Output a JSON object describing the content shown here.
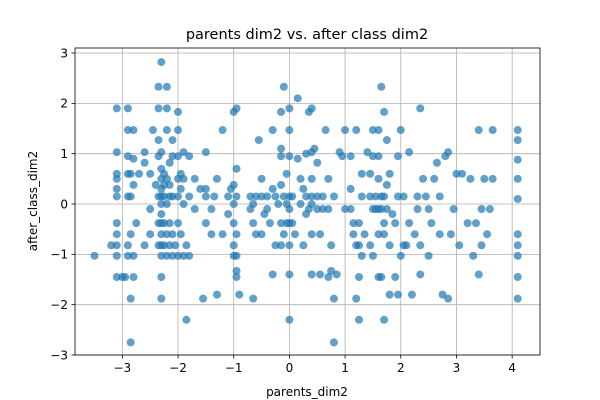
{
  "chart_data": {
    "type": "scatter",
    "title": "parents dim2 vs. after class dim2",
    "xlabel": "parents_dim2",
    "ylabel": "after_class_dim2",
    "xlim": [
      -3.85,
      4.5
    ],
    "ylim": [
      -3.0,
      3.1
    ],
    "xticks": [
      -3,
      -2,
      -1,
      0,
      1,
      2,
      3,
      4
    ],
    "yticks": [
      -3,
      -2,
      -1,
      0,
      1,
      2,
      3
    ],
    "xtick_labels": [
      "−3",
      "−2",
      "−1",
      "0",
      "1",
      "2",
      "3",
      "4"
    ],
    "ytick_labels": [
      "−3",
      "−2",
      "−1",
      "0",
      "1",
      "2",
      "3"
    ],
    "grid": true,
    "marker_color": "#1f77b4",
    "marker_alpha": 0.7,
    "points": [
      [
        -3.5,
        -1.03
      ],
      [
        -3.2,
        -0.82
      ],
      [
        -3.1,
        -0.82
      ],
      [
        -3.1,
        -1.45
      ],
      [
        -3.1,
        -1.03
      ],
      [
        -3.1,
        -0.6
      ],
      [
        -3.1,
        -0.38
      ],
      [
        -3.1,
        0.15
      ],
      [
        -3.1,
        0.3
      ],
      [
        -3.1,
        0.5
      ],
      [
        -3.1,
        0.6
      ],
      [
        -3.1,
        1.03
      ],
      [
        -3.1,
        1.9
      ],
      [
        -3.0,
        -1.45
      ],
      [
        -2.95,
        -1.45
      ],
      [
        -2.9,
        -1.03
      ],
      [
        -2.9,
        -0.82
      ],
      [
        -2.9,
        0.15
      ],
      [
        -2.9,
        0.6
      ],
      [
        -2.9,
        0.95
      ],
      [
        -2.9,
        1.47
      ],
      [
        -2.9,
        1.9
      ],
      [
        -2.85,
        -2.75
      ],
      [
        -2.85,
        -1.88
      ],
      [
        -2.85,
        -0.6
      ],
      [
        -2.85,
        0.15
      ],
      [
        -2.85,
        0.6
      ],
      [
        -2.8,
        -1.45
      ],
      [
        -2.8,
        -1.03
      ],
      [
        -2.8,
        0.38
      ],
      [
        -2.8,
        0.9
      ],
      [
        -2.8,
        1.47
      ],
      [
        -2.75,
        -0.38
      ],
      [
        -2.7,
        0.6
      ],
      [
        -2.6,
        -0.82
      ],
      [
        -2.6,
        0.82
      ],
      [
        -2.6,
        1.03
      ],
      [
        -2.5,
        -0.6
      ],
      [
        -2.5,
        -0.1
      ],
      [
        -2.5,
        0.6
      ],
      [
        -2.45,
        1.47
      ],
      [
        -2.4,
        0.38
      ],
      [
        -2.35,
        -0.82
      ],
      [
        -2.35,
        -0.38
      ],
      [
        -2.35,
        0.15
      ],
      [
        -2.35,
        0.95
      ],
      [
        -2.35,
        1.27
      ],
      [
        -2.35,
        1.9
      ],
      [
        -2.35,
        2.33
      ],
      [
        -2.3,
        -1.88
      ],
      [
        -2.3,
        -1.45
      ],
      [
        -2.3,
        -1.03
      ],
      [
        -2.3,
        -0.82
      ],
      [
        -2.3,
        -0.6
      ],
      [
        -2.3,
        -0.38
      ],
      [
        -2.3,
        -0.2
      ],
      [
        -2.3,
        0.0
      ],
      [
        -2.3,
        0.15
      ],
      [
        -2.3,
        0.3
      ],
      [
        -2.3,
        0.5
      ],
      [
        -2.3,
        0.7
      ],
      [
        -2.3,
        1.03
      ],
      [
        -2.3,
        2.82
      ],
      [
        -2.25,
        -0.82
      ],
      [
        -2.25,
        -0.38
      ],
      [
        -2.25,
        0.15
      ],
      [
        -2.25,
        0.38
      ],
      [
        -2.25,
        0.6
      ],
      [
        -2.2,
        -1.03
      ],
      [
        -2.2,
        -0.6
      ],
      [
        -2.2,
        0.0
      ],
      [
        -2.2,
        0.5
      ],
      [
        -2.2,
        1.47
      ],
      [
        -2.2,
        1.9
      ],
      [
        -2.2,
        2.33
      ],
      [
        -2.15,
        -0.82
      ],
      [
        -2.15,
        -0.38
      ],
      [
        -2.15,
        0.15
      ],
      [
        -2.15,
        0.38
      ],
      [
        -2.15,
        0.82
      ],
      [
        -2.1,
        -1.03
      ],
      [
        -2.1,
        -0.6
      ],
      [
        -2.1,
        0.15
      ],
      [
        -2.1,
        0.95
      ],
      [
        -2.1,
        1.27
      ],
      [
        -2.05,
        -0.82
      ],
      [
        -2.0,
        -1.03
      ],
      [
        -2.0,
        -0.38
      ],
      [
        -2.0,
        0.15
      ],
      [
        -2.0,
        0.5
      ],
      [
        -2.0,
        0.95
      ],
      [
        -2.0,
        1.47
      ],
      [
        -2.0,
        1.83
      ],
      [
        -1.95,
        -0.6
      ],
      [
        -1.95,
        0.3
      ],
      [
        -1.95,
        0.6
      ],
      [
        -1.9,
        -1.03
      ],
      [
        -1.9,
        0.0
      ],
      [
        -1.9,
        0.5
      ],
      [
        -1.9,
        1.03
      ],
      [
        -1.85,
        -2.3
      ],
      [
        -1.85,
        -0.82
      ],
      [
        -1.8,
        -1.03
      ],
      [
        -1.8,
        0.15
      ],
      [
        -1.8,
        0.95
      ],
      [
        -1.7,
        -0.1
      ],
      [
        -1.7,
        0.5
      ],
      [
        -1.6,
        0.3
      ],
      [
        -1.55,
        -1.88
      ],
      [
        -1.5,
        -0.38
      ],
      [
        -1.5,
        0.15
      ],
      [
        -1.5,
        0.3
      ],
      [
        -1.5,
        1.03
      ],
      [
        -1.4,
        -0.6
      ],
      [
        -1.4,
        -0.1
      ],
      [
        -1.35,
        0.15
      ],
      [
        -1.3,
        -1.8
      ],
      [
        -1.3,
        0.5
      ],
      [
        -1.2,
        -0.6
      ],
      [
        -1.2,
        1.47
      ],
      [
        -1.1,
        -0.2
      ],
      [
        -1.1,
        0.15
      ],
      [
        -1.05,
        0.3
      ],
      [
        -1.0,
        -1.03
      ],
      [
        -1.0,
        -0.82
      ],
      [
        -1.0,
        -0.38
      ],
      [
        -1.0,
        0.0
      ],
      [
        -1.0,
        0.38
      ],
      [
        -1.0,
        1.83
      ],
      [
        -0.95,
        -1.45
      ],
      [
        -0.95,
        -1.33
      ],
      [
        -0.95,
        -1.03
      ],
      [
        -0.95,
        -0.6
      ],
      [
        -0.95,
        0.15
      ],
      [
        -0.95,
        0.7
      ],
      [
        -0.95,
        1.9
      ],
      [
        -0.9,
        -1.8
      ],
      [
        -0.7,
        -0.1
      ],
      [
        -0.7,
        0.15
      ],
      [
        -0.65,
        -1.88
      ],
      [
        -0.65,
        -0.38
      ],
      [
        -0.65,
        0.0
      ],
      [
        -0.6,
        -0.6
      ],
      [
        -0.6,
        0.15
      ],
      [
        -0.55,
        1.27
      ],
      [
        -0.5,
        -0.6
      ],
      [
        -0.5,
        0.15
      ],
      [
        -0.5,
        0.5
      ],
      [
        -0.45,
        -0.2
      ],
      [
        -0.4,
        -0.1
      ],
      [
        -0.4,
        0.15
      ],
      [
        -0.35,
        -0.38
      ],
      [
        -0.3,
        -1.4
      ],
      [
        -0.3,
        0.3
      ],
      [
        -0.3,
        1.47
      ],
      [
        -0.25,
        -0.82
      ],
      [
        -0.25,
        0.15
      ],
      [
        -0.2,
        0.0
      ],
      [
        -0.15,
        -0.82
      ],
      [
        -0.15,
        -0.38
      ],
      [
        -0.15,
        0.38
      ],
      [
        -0.15,
        0.95
      ],
      [
        -0.15,
        1.1
      ],
      [
        -0.15,
        1.83
      ],
      [
        -0.1,
        -0.6
      ],
      [
        -0.1,
        0.15
      ],
      [
        -0.1,
        2.33
      ],
      [
        -0.05,
        -0.38
      ],
      [
        -0.05,
        0.0
      ],
      [
        -0.05,
        0.6
      ],
      [
        0.0,
        -2.3
      ],
      [
        0.0,
        -1.4
      ],
      [
        0.0,
        -0.82
      ],
      [
        0.0,
        -0.38
      ],
      [
        0.0,
        -0.1
      ],
      [
        0.0,
        0.15
      ],
      [
        0.0,
        0.95
      ],
      [
        0.0,
        1.47
      ],
      [
        0.0,
        1.9
      ],
      [
        0.05,
        -0.38
      ],
      [
        0.05,
        0.15
      ],
      [
        0.1,
        -0.6
      ],
      [
        0.15,
        0.9
      ],
      [
        0.15,
        2.1
      ],
      [
        0.2,
        0.5
      ],
      [
        0.2,
        0.0
      ],
      [
        0.25,
        -0.82
      ],
      [
        0.25,
        0.3
      ],
      [
        0.3,
        -0.2
      ],
      [
        0.3,
        0.15
      ],
      [
        0.3,
        1.0
      ],
      [
        0.35,
        -0.1
      ],
      [
        0.35,
        1.83
      ],
      [
        0.4,
        -1.4
      ],
      [
        0.4,
        -0.6
      ],
      [
        0.4,
        0.0
      ],
      [
        0.4,
        0.15
      ],
      [
        0.4,
        0.5
      ],
      [
        0.4,
        1.03
      ],
      [
        0.4,
        1.9
      ],
      [
        0.45,
        1.1
      ],
      [
        0.5,
        -0.1
      ],
      [
        0.5,
        0.15
      ],
      [
        0.5,
        0.82
      ],
      [
        0.55,
        -1.4
      ],
      [
        0.55,
        -0.6
      ],
      [
        0.6,
        -0.1
      ],
      [
        0.6,
        0.15
      ],
      [
        0.65,
        1.47
      ],
      [
        0.7,
        -1.45
      ],
      [
        0.7,
        -0.1
      ],
      [
        0.7,
        0.5
      ],
      [
        0.75,
        -1.33
      ],
      [
        0.75,
        -0.82
      ],
      [
        0.8,
        -2.75
      ],
      [
        0.8,
        -1.88
      ],
      [
        0.8,
        0.15
      ],
      [
        0.85,
        -1.4
      ],
      [
        0.9,
        1.03
      ],
      [
        0.95,
        0.95
      ],
      [
        1.0,
        -0.1
      ],
      [
        1.0,
        1.47
      ],
      [
        1.1,
        -0.1
      ],
      [
        1.1,
        0.3
      ],
      [
        1.1,
        0.95
      ],
      [
        1.15,
        -0.6
      ],
      [
        1.15,
        -0.38
      ],
      [
        1.2,
        -1.88
      ],
      [
        1.2,
        -0.82
      ],
      [
        1.2,
        1.47
      ],
      [
        1.25,
        -2.3
      ],
      [
        1.25,
        -1.45
      ],
      [
        1.25,
        -0.82
      ],
      [
        1.25,
        -0.38
      ],
      [
        1.3,
        -1.03
      ],
      [
        1.3,
        0.15
      ],
      [
        1.3,
        0.6
      ],
      [
        1.35,
        -0.6
      ],
      [
        1.4,
        1.03
      ],
      [
        1.45,
        -0.82
      ],
      [
        1.45,
        0.15
      ],
      [
        1.45,
        0.6
      ],
      [
        1.5,
        -1.03
      ],
      [
        1.5,
        -0.1
      ],
      [
        1.5,
        0.95
      ],
      [
        1.5,
        1.47
      ],
      [
        1.55,
        -0.1
      ],
      [
        1.55,
        0.15
      ],
      [
        1.6,
        -1.45
      ],
      [
        1.6,
        -0.6
      ],
      [
        1.6,
        -0.1
      ],
      [
        1.6,
        0.5
      ],
      [
        1.6,
        0.95
      ],
      [
        1.6,
        1.47
      ],
      [
        1.65,
        -1.45
      ],
      [
        1.65,
        -0.1
      ],
      [
        1.65,
        0.15
      ],
      [
        1.65,
        2.33
      ],
      [
        1.7,
        -2.3
      ],
      [
        1.7,
        -0.6
      ],
      [
        1.7,
        -0.38
      ],
      [
        1.7,
        0.15
      ],
      [
        1.7,
        1.83
      ],
      [
        1.75,
        -0.1
      ],
      [
        1.75,
        0.38
      ],
      [
        1.75,
        1.27
      ],
      [
        1.8,
        -1.8
      ],
      [
        1.8,
        -0.82
      ],
      [
        1.8,
        0.6
      ],
      [
        1.85,
        -0.2
      ],
      [
        1.9,
        -1.45
      ],
      [
        1.9,
        -0.38
      ],
      [
        1.95,
        -1.8
      ],
      [
        1.95,
        0.15
      ],
      [
        1.95,
        0.95
      ],
      [
        2.0,
        -1.03
      ],
      [
        2.0,
        1.47
      ],
      [
        2.05,
        -0.82
      ],
      [
        2.05,
        0.15
      ],
      [
        2.1,
        -0.82
      ],
      [
        2.15,
        -0.38
      ],
      [
        2.15,
        1.03
      ],
      [
        2.2,
        -1.8
      ],
      [
        2.25,
        -0.6
      ],
      [
        2.3,
        -0.1
      ],
      [
        2.3,
        0.15
      ],
      [
        2.35,
        -1.4
      ],
      [
        2.35,
        -0.82
      ],
      [
        2.35,
        1.9
      ],
      [
        2.4,
        0.5
      ],
      [
        2.45,
        0.15
      ],
      [
        2.5,
        -1.03
      ],
      [
        2.5,
        -0.1
      ],
      [
        2.55,
        -0.38
      ],
      [
        2.6,
        0.5
      ],
      [
        2.65,
        0.82
      ],
      [
        2.7,
        -0.6
      ],
      [
        2.7,
        0.15
      ],
      [
        2.75,
        -1.8
      ],
      [
        2.8,
        0.95
      ],
      [
        2.85,
        -1.88
      ],
      [
        2.85,
        1.03
      ],
      [
        2.9,
        -0.6
      ],
      [
        2.95,
        -0.1
      ],
      [
        3.0,
        0.6
      ],
      [
        3.05,
        -0.82
      ],
      [
        3.1,
        0.6
      ],
      [
        3.2,
        -0.38
      ],
      [
        3.25,
        0.5
      ],
      [
        3.3,
        -1.03
      ],
      [
        3.35,
        -0.38
      ],
      [
        3.4,
        -1.4
      ],
      [
        3.4,
        1.47
      ],
      [
        3.45,
        -0.82
      ],
      [
        3.45,
        -0.1
      ],
      [
        3.5,
        0.5
      ],
      [
        3.55,
        -0.6
      ],
      [
        3.6,
        -0.1
      ],
      [
        3.65,
        0.5
      ],
      [
        3.65,
        1.47
      ],
      [
        4.1,
        -1.88
      ],
      [
        4.1,
        -1.45
      ],
      [
        4.1,
        -1.03
      ],
      [
        4.1,
        -0.82
      ],
      [
        4.1,
        -0.6
      ],
      [
        4.1,
        0.1
      ],
      [
        4.1,
        0.5
      ],
      [
        4.1,
        0.88
      ],
      [
        4.1,
        1.27
      ],
      [
        4.1,
        1.47
      ]
    ]
  }
}
